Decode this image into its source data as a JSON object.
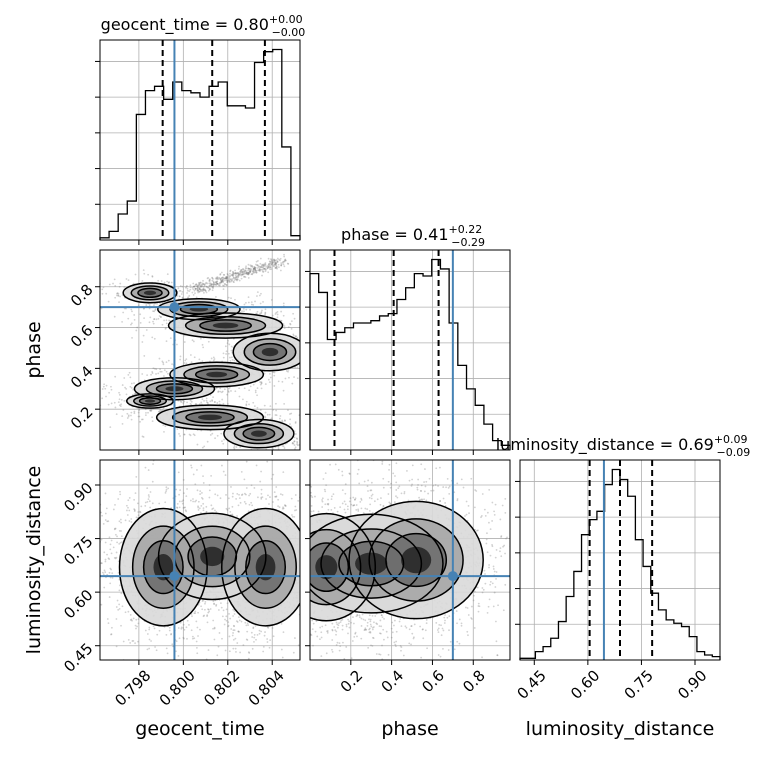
{
  "chart_data": {
    "type": "corner",
    "truth_color": "#4682b4",
    "hist_color": "#000000",
    "params": [
      {
        "name": "geocent_time",
        "xlabel": "geocent_time",
        "range": [
          0.79625,
          0.80525
        ],
        "truth": 0.7996,
        "quantiles": [
          0.79907,
          0.8013,
          0.80367
        ],
        "title": {
          "prefix": "geocent_time = ",
          "median": "0.80",
          "plus": "+0.00",
          "minus": "−0.00"
        },
        "ticks": [
          0.798,
          0.8,
          0.802,
          0.804
        ],
        "tick_labels": [
          "0.798",
          "0.800",
          "0.802",
          "0.804"
        ],
        "hist": [
          0.1,
          0.4,
          1.2,
          1.8,
          5.8,
          6.9,
          7.1,
          6.5,
          7.3,
          6.9,
          6.8,
          6.6,
          7.1,
          7.3,
          6.2,
          6.2,
          6.1,
          8.2,
          8.7,
          8.8,
          4.3,
          0.2
        ]
      },
      {
        "name": "phase",
        "ylabel": "phase",
        "xlabel": "phase",
        "range": [
          0.0,
          0.98
        ],
        "truth": 0.7,
        "quantiles": [
          0.12,
          0.41,
          0.63
        ],
        "title": {
          "prefix": "phase = ",
          "median": "0.41",
          "plus": "+0.22",
          "minus": "−0.29"
        },
        "ticks": [
          0.2,
          0.4,
          0.6,
          0.8
        ],
        "tick_labels": [
          "0.2",
          "0.4",
          "0.6",
          "0.8"
        ],
        "hist": [
          7.5,
          6.7,
          4.7,
          5.0,
          5.2,
          5.4,
          5.4,
          5.5,
          5.7,
          5.8,
          6.4,
          6.9,
          7.5,
          7.4,
          8.1,
          7.7,
          5.4,
          3.6,
          2.6,
          1.9,
          1.1,
          0.4,
          0.2
        ]
      },
      {
        "name": "luminosity_distance",
        "ylabel": "luminosity_distance",
        "xlabel": "luminosity_distance",
        "range": [
          0.41,
          0.97
        ],
        "truth": 0.645,
        "quantiles": [
          0.605,
          0.69,
          0.78
        ],
        "title": {
          "prefix": "luminosity_distance = ",
          "median": "0.69",
          "plus": "+0.09",
          "minus": "−0.09"
        },
        "ticks": [
          0.45,
          0.6,
          0.75,
          0.9
        ],
        "tick_labels": [
          "0.45",
          "0.60",
          "0.75",
          "0.90"
        ],
        "hist": [
          0.1,
          0.1,
          0.5,
          0.8,
          1.3,
          2.3,
          3.8,
          5.3,
          7.5,
          8.4,
          8.9,
          10.5,
          11.4,
          10.8,
          9.8,
          7.2,
          5.6,
          4.0,
          3.0,
          2.4,
          2.2,
          2.0,
          1.4,
          0.5,
          0.3,
          0.2
        ]
      }
    ],
    "density_2d": {
      "phase_vs_geocent_time": {
        "blobs": [
          {
            "x": 0.7985,
            "y": 0.77,
            "sx": 0.00045,
            "sy": 0.018,
            "w": 0.8
          },
          {
            "x": 0.8007,
            "y": 0.69,
            "sx": 0.00065,
            "sy": 0.018,
            "w": 0.9
          },
          {
            "x": 0.8019,
            "y": 0.61,
            "sx": 0.00075,
            "sy": 0.018,
            "w": 1.3
          },
          {
            "x": 0.8039,
            "y": 0.48,
            "sx": 0.00045,
            "sy": 0.025,
            "w": 1.5
          },
          {
            "x": 0.8015,
            "y": 0.37,
            "sx": 0.0007,
            "sy": 0.02,
            "w": 1.0
          },
          {
            "x": 0.7996,
            "y": 0.3,
            "sx": 0.0006,
            "sy": 0.018,
            "w": 1.0
          },
          {
            "x": 0.7985,
            "y": 0.24,
            "sx": 0.00045,
            "sy": 0.015,
            "w": 0.6
          },
          {
            "x": 0.8012,
            "y": 0.16,
            "sx": 0.0008,
            "sy": 0.02,
            "w": 1.0
          },
          {
            "x": 0.8034,
            "y": 0.08,
            "sx": 0.0005,
            "sy": 0.022,
            "w": 1.1
          }
        ],
        "band": [
          [
            0.8003,
            0.78
          ],
          [
            0.802,
            0.84
          ],
          [
            0.8045,
            0.93
          ]
        ]
      },
      "luminosity_distance_vs_geocent_time": {
        "blobs": [
          {
            "x": 0.7991,
            "y": 0.67,
            "sx": 0.0006,
            "sy": 0.05,
            "w": 1.2
          },
          {
            "x": 0.8037,
            "y": 0.67,
            "sx": 0.0006,
            "sy": 0.05,
            "w": 1.2
          },
          {
            "x": 0.8013,
            "y": 0.7,
            "sx": 0.0009,
            "sy": 0.045,
            "w": 0.8
          }
        ]
      },
      "luminosity_distance_vs_phase": {
        "blobs": [
          {
            "x": 0.08,
            "y": 0.67,
            "sx": 0.08,
            "sy": 0.05,
            "w": 1.0
          },
          {
            "x": 0.52,
            "y": 0.69,
            "sx": 0.1,
            "sy": 0.05,
            "w": 1.2
          },
          {
            "x": 0.3,
            "y": 0.68,
            "sx": 0.14,
            "sy": 0.055,
            "w": 0.7
          }
        ]
      }
    }
  }
}
